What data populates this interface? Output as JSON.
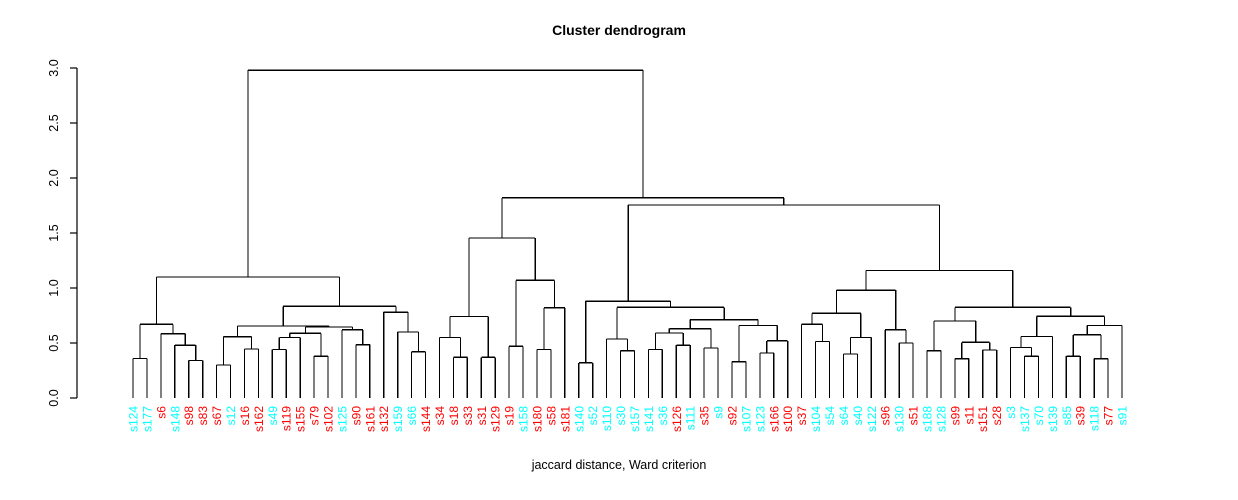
{
  "title": "Cluster dendrogram",
  "caption": "jaccard distance, Ward criterion",
  "chart_data": {
    "type": "dendrogram",
    "ylim": [
      0,
      3
    ],
    "grid": false,
    "yaxis": {
      "ticks": [
        0.0,
        0.5,
        1.0,
        1.5,
        2.0,
        2.5,
        3.0
      ],
      "tick_labels": [
        "0.0",
        "0.5",
        "1.0",
        "1.5",
        "2.0",
        "2.5",
        "3.0"
      ]
    },
    "leaf_colors": {
      "red": "#FF0000",
      "cyan": "#00FFFF"
    },
    "leaves": [
      {
        "label": "s124",
        "color": "cyan"
      },
      {
        "label": "s177",
        "color": "cyan"
      },
      {
        "label": "s6",
        "color": "red"
      },
      {
        "label": "s148",
        "color": "cyan"
      },
      {
        "label": "s98",
        "color": "red"
      },
      {
        "label": "s83",
        "color": "red"
      },
      {
        "label": "s67",
        "color": "red"
      },
      {
        "label": "s12",
        "color": "cyan"
      },
      {
        "label": "s16",
        "color": "red"
      },
      {
        "label": "s162",
        "color": "red"
      },
      {
        "label": "s49",
        "color": "cyan"
      },
      {
        "label": "s119",
        "color": "red"
      },
      {
        "label": "s155",
        "color": "red"
      },
      {
        "label": "s79",
        "color": "red"
      },
      {
        "label": "s102",
        "color": "red"
      },
      {
        "label": "s125",
        "color": "cyan"
      },
      {
        "label": "s90",
        "color": "red"
      },
      {
        "label": "s161",
        "color": "red"
      },
      {
        "label": "s132",
        "color": "red"
      },
      {
        "label": "s159",
        "color": "cyan"
      },
      {
        "label": "s66",
        "color": "cyan"
      },
      {
        "label": "s144",
        "color": "red"
      },
      {
        "label": "s34",
        "color": "red"
      },
      {
        "label": "s18",
        "color": "red"
      },
      {
        "label": "s33",
        "color": "red"
      },
      {
        "label": "s31",
        "color": "red"
      },
      {
        "label": "s129",
        "color": "red"
      },
      {
        "label": "s19",
        "color": "red"
      },
      {
        "label": "s158",
        "color": "cyan"
      },
      {
        "label": "s180",
        "color": "red"
      },
      {
        "label": "s58",
        "color": "red"
      },
      {
        "label": "s181",
        "color": "red"
      },
      {
        "label": "s140",
        "color": "cyan"
      },
      {
        "label": "s52",
        "color": "cyan"
      },
      {
        "label": "s110",
        "color": "cyan"
      },
      {
        "label": "s30",
        "color": "cyan"
      },
      {
        "label": "s157",
        "color": "cyan"
      },
      {
        "label": "s141",
        "color": "cyan"
      },
      {
        "label": "s36",
        "color": "cyan"
      },
      {
        "label": "s126",
        "color": "red"
      },
      {
        "label": "s111",
        "color": "cyan"
      },
      {
        "label": "s35",
        "color": "red"
      },
      {
        "label": "s9",
        "color": "cyan"
      },
      {
        "label": "s92",
        "color": "red"
      },
      {
        "label": "s107",
        "color": "cyan"
      },
      {
        "label": "s123",
        "color": "cyan"
      },
      {
        "label": "s166",
        "color": "red"
      },
      {
        "label": "s100",
        "color": "red"
      },
      {
        "label": "s37",
        "color": "red"
      },
      {
        "label": "s104",
        "color": "cyan"
      },
      {
        "label": "s54",
        "color": "cyan"
      },
      {
        "label": "s64",
        "color": "cyan"
      },
      {
        "label": "s40",
        "color": "cyan"
      },
      {
        "label": "s122",
        "color": "cyan"
      },
      {
        "label": "s96",
        "color": "red"
      },
      {
        "label": "s130",
        "color": "cyan"
      },
      {
        "label": "s51",
        "color": "red"
      },
      {
        "label": "s188",
        "color": "cyan"
      },
      {
        "label": "s128",
        "color": "cyan"
      },
      {
        "label": "s99",
        "color": "red"
      },
      {
        "label": "s11",
        "color": "red"
      },
      {
        "label": "s151",
        "color": "red"
      },
      {
        "label": "s28",
        "color": "red"
      },
      {
        "label": "s3",
        "color": "cyan"
      },
      {
        "label": "s137",
        "color": "cyan"
      },
      {
        "label": "s70",
        "color": "cyan"
      },
      {
        "label": "s139",
        "color": "cyan"
      },
      {
        "label": "s85",
        "color": "cyan"
      },
      {
        "label": "s39",
        "color": "red"
      },
      {
        "label": "s118",
        "color": "cyan"
      },
      {
        "label": "s77",
        "color": "red"
      },
      {
        "label": "s91",
        "color": "cyan"
      }
    ],
    "tree": {
      "h": 2.98,
      "c": [
        {
          "h": 1.1,
          "c": [
            {
              "h": 0.67,
              "c": [
                {
                  "h": 0.36,
                  "c": [
                    "s124",
                    "s177"
                  ]
                },
                {
                  "h": 0.585,
                  "c": [
                    "s6",
                    {
                      "h": 0.48,
                      "c": [
                        "s148",
                        {
                          "h": 0.34,
                          "c": [
                            "s98",
                            "s83"
                          ]
                        }
                      ]
                    }
                  ]
                }
              ]
            },
            {
              "h": 0.834,
              "c": [
                {
                  "h": 0.655,
                  "c": [
                    {
                      "h": 0.557,
                      "c": [
                        {
                          "h": 0.3,
                          "c": [
                            "s67",
                            "s12"
                          ]
                        },
                        {
                          "h": 0.445,
                          "c": [
                            "s16",
                            "s162"
                          ]
                        }
                      ]
                    },
                    {
                      "h": 0.645,
                      "c": [
                        {
                          "h": 0.588,
                          "c": [
                            {
                              "h": 0.55,
                              "c": [
                                {
                                  "h": 0.44,
                                  "c": [
                                    "s49",
                                    "s119"
                                  ]
                                },
                                "s155"
                              ]
                            },
                            {
                              "h": 0.38,
                              "c": [
                                "s79",
                                "s102"
                              ]
                            }
                          ]
                        },
                        {
                          "h": 0.62,
                          "c": [
                            "s125",
                            {
                              "h": 0.485,
                              "c": [
                                "s90",
                                "s161"
                              ]
                            }
                          ]
                        }
                      ]
                    }
                  ]
                },
                {
                  "h": 0.78,
                  "c": [
                    "s132",
                    {
                      "h": 0.6,
                      "c": [
                        "s159",
                        {
                          "h": 0.42,
                          "c": [
                            "s66",
                            "s144"
                          ]
                        }
                      ]
                    }
                  ]
                }
              ]
            }
          ]
        },
        {
          "h": 1.82,
          "c": [
            {
              "h": 1.455,
              "c": [
                {
                  "h": 0.74,
                  "c": [
                    {
                      "h": 0.55,
                      "c": [
                        "s34",
                        {
                          "h": 0.37,
                          "c": [
                            "s18",
                            "s33"
                          ]
                        }
                      ]
                    },
                    {
                      "h": 0.37,
                      "c": [
                        "s31",
                        "s129"
                      ]
                    }
                  ]
                },
                {
                  "h": 1.07,
                  "c": [
                    {
                      "h": 0.47,
                      "c": [
                        "s19",
                        "s158"
                      ]
                    },
                    {
                      "h": 0.82,
                      "c": [
                        {
                          "h": 0.44,
                          "c": [
                            "s180",
                            "s58"
                          ]
                        },
                        "s181"
                      ]
                    }
                  ]
                }
              ]
            },
            {
              "h": 1.755,
              "c": [
                {
                  "h": 0.88,
                  "c": [
                    {
                      "h": 0.32,
                      "c": [
                        "s140",
                        "s52"
                      ]
                    },
                    {
                      "h": 0.825,
                      "c": [
                        {
                          "h": 0.536,
                          "c": [
                            "s110",
                            {
                              "h": 0.43,
                              "c": [
                                "s30",
                                "s157"
                              ]
                            }
                          ]
                        },
                        {
                          "h": 0.712,
                          "c": [
                            {
                              "h": 0.63,
                              "c": [
                                {
                                  "h": 0.59,
                                  "c": [
                                    {
                                      "h": 0.44,
                                      "c": [
                                        "s141",
                                        "s36"
                                      ]
                                    },
                                    {
                                      "h": 0.48,
                                      "c": [
                                        "s126",
                                        "s111"
                                      ]
                                    }
                                  ]
                                },
                                {
                                  "h": 0.455,
                                  "c": [
                                    "s35",
                                    "s9"
                                  ]
                                }
                              ]
                            },
                            {
                              "h": 0.66,
                              "c": [
                                {
                                  "h": 0.33,
                                  "c": [
                                    "s92",
                                    "s107"
                                  ]
                                },
                                {
                                  "h": 0.52,
                                  "c": [
                                    {
                                      "h": 0.41,
                                      "c": [
                                        "s123",
                                        "s166"
                                      ]
                                    },
                                    "s100"
                                  ]
                                }
                              ]
                            }
                          ]
                        }
                      ]
                    }
                  ]
                },
                {
                  "h": 1.16,
                  "c": [
                    {
                      "h": 0.98,
                      "c": [
                        {
                          "h": 0.77,
                          "c": [
                            {
                              "h": 0.67,
                              "c": [
                                "s37",
                                {
                                  "h": 0.515,
                                  "c": [
                                    "s104",
                                    "s54"
                                  ]
                                }
                              ]
                            },
                            {
                              "h": 0.55,
                              "c": [
                                {
                                  "h": 0.4,
                                  "c": [
                                    "s64",
                                    "s40"
                                  ]
                                },
                                "s122"
                              ]
                            }
                          ]
                        },
                        {
                          "h": 0.62,
                          "c": [
                            "s96",
                            {
                              "h": 0.5,
                              "c": [
                                "s130",
                                "s51"
                              ]
                            }
                          ]
                        }
                      ]
                    },
                    {
                      "h": 0.825,
                      "c": [
                        {
                          "h": 0.7,
                          "c": [
                            {
                              "h": 0.43,
                              "c": [
                                "s188",
                                "s128"
                              ]
                            },
                            {
                              "h": 0.506,
                              "c": [
                                {
                                  "h": 0.357,
                                  "c": [
                                    "s99",
                                    "s11"
                                  ]
                                },
                                {
                                  "h": 0.436,
                                  "c": [
                                    "s151",
                                    "s28"
                                  ]
                                }
                              ]
                            }
                          ]
                        },
                        {
                          "h": 0.743,
                          "c": [
                            {
                              "h": 0.56,
                              "c": [
                                {
                                  "h": 0.46,
                                  "c": [
                                    "s3",
                                    {
                                      "h": 0.38,
                                      "c": [
                                        "s137",
                                        "s70"
                                      ]
                                    }
                                  ]
                                },
                                "s139"
                              ]
                            },
                            {
                              "h": 0.66,
                              "c": [
                                {
                                  "h": 0.575,
                                  "c": [
                                    {
                                      "h": 0.38,
                                      "c": [
                                        "s85",
                                        "s39"
                                      ]
                                    },
                                    {
                                      "h": 0.357,
                                      "c": [
                                        "s118",
                                        "s77"
                                      ]
                                    }
                                  ]
                                },
                                "s91"
                              ]
                            }
                          ]
                        }
                      ]
                    }
                  ]
                }
              ]
            }
          ]
        }
      ]
    }
  }
}
